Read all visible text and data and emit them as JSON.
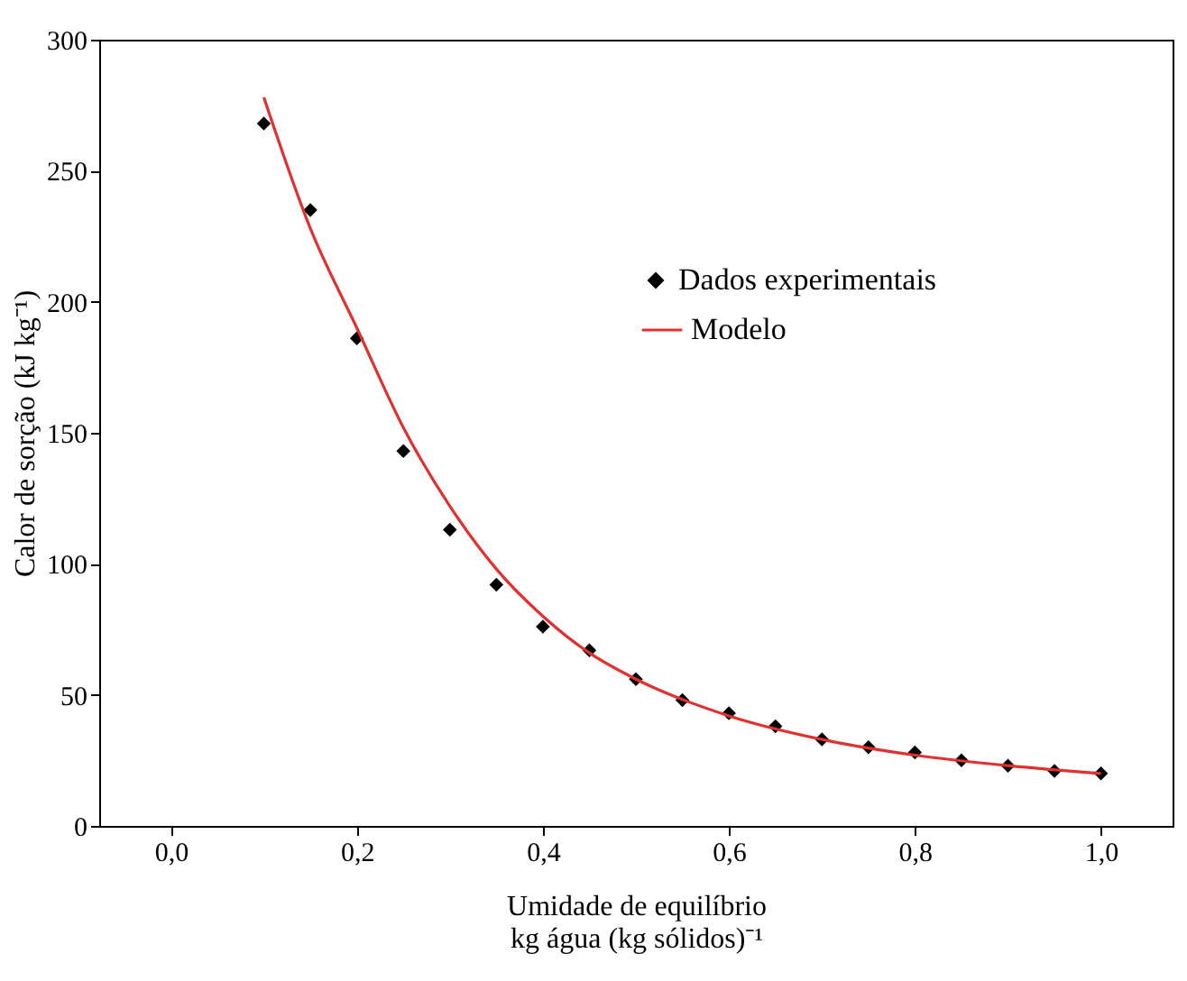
{
  "chart_data": {
    "type": "scatter",
    "xlabel": "Umidade de equilíbrio\nkg água (kg sólidos)⁻¹",
    "ylabel": "Calor de sorção (kJ kg⁻¹)",
    "xlim": [
      -0.077,
      1.077
    ],
    "ylim": [
      0,
      300
    ],
    "xticks": [
      {
        "value": 0,
        "label": "0,0"
      },
      {
        "value": 0.2,
        "label": "0,2"
      },
      {
        "value": 0.4,
        "label": "0,4"
      },
      {
        "value": 0.6,
        "label": "0,6"
      },
      {
        "value": 0.8,
        "label": "0,8"
      },
      {
        "value": 1.0,
        "label": "1,0"
      }
    ],
    "yticks": [
      0,
      50,
      100,
      150,
      200,
      250,
      300
    ],
    "grid": false,
    "legend": "top right",
    "series": [
      {
        "name": "Dados experimentais",
        "type": "scatter",
        "color": "#000000",
        "marker": "diamond",
        "x": [
          0.1,
          0.15,
          0.2,
          0.25,
          0.3,
          0.35,
          0.4,
          0.45,
          0.5,
          0.55,
          0.6,
          0.65,
          0.7,
          0.75,
          0.8,
          0.85,
          0.9,
          0.95,
          1.0
        ],
        "values": [
          268,
          235,
          186,
          143,
          113,
          92,
          76,
          67,
          56,
          48,
          43,
          38,
          33,
          30,
          28,
          25,
          23,
          21,
          20
        ]
      },
      {
        "name": "Modelo",
        "type": "line",
        "color": "#e03030",
        "line_style": "solid",
        "x": [
          0.1,
          0.15,
          0.2,
          0.25,
          0.3,
          0.35,
          0.4,
          0.45,
          0.5,
          0.6,
          0.7,
          0.8,
          0.9,
          1.0
        ],
        "values": [
          278,
          228,
          190,
          152,
          122,
          98,
          80,
          66,
          56,
          42,
          33,
          27,
          23,
          20
        ]
      }
    ]
  }
}
